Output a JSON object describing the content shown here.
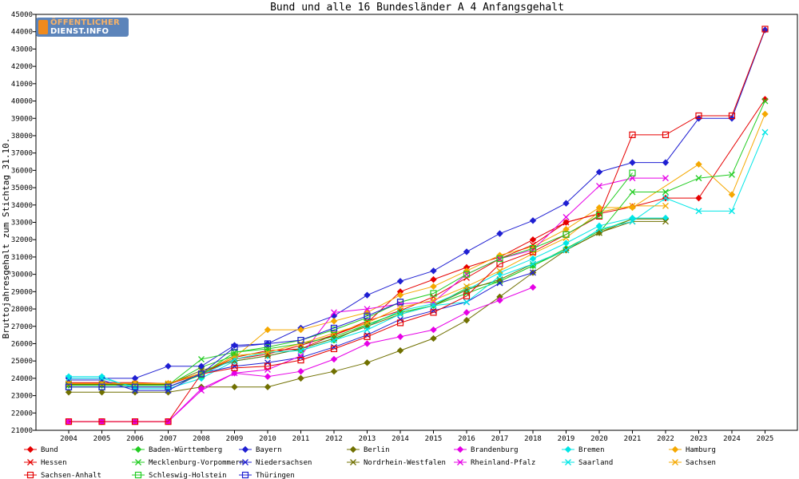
{
  "chart_data": {
    "type": "line",
    "title": "Bund und alle 16 Bundesländer A 4 Anfangsgehalt",
    "ylabel": "Bruttojahresgehalt zum Stichtag 31.10.",
    "xlabel": "",
    "ylim": [
      21000,
      45000
    ],
    "y_ticks": [
      21000,
      22000,
      23000,
      24000,
      25000,
      26000,
      27000,
      28000,
      29000,
      30000,
      31000,
      32000,
      33000,
      34000,
      35000,
      36000,
      37000,
      38000,
      39000,
      40000,
      41000,
      42000,
      43000,
      44000,
      45000
    ],
    "x": [
      2004,
      2005,
      2006,
      2007,
      2008,
      2009,
      2010,
      2011,
      2012,
      2013,
      2014,
      2015,
      2016,
      2017,
      2018,
      2019,
      2020,
      2021,
      2022,
      2023,
      2024,
      2025
    ],
    "grid": false,
    "legend_position": "bottom",
    "series": [
      {
        "name": "Bund",
        "color": "#e60000",
        "marker": "diamond",
        "values": [
          23750,
          23750,
          23750,
          23700,
          24300,
          25200,
          25600,
          25700,
          26500,
          27200,
          29000,
          29700,
          30400,
          31000,
          32000,
          33000,
          33500,
          33900,
          34400,
          34400,
          null,
          40100
        ]
      },
      {
        "name": "Baden-Württemberg",
        "color": "#22cc22",
        "marker": "diamond",
        "values": [
          23600,
          23600,
          23600,
          23600,
          24650,
          25300,
          25500,
          25600,
          26200,
          27100,
          27800,
          28200,
          29200,
          29600,
          30500,
          31500,
          32500,
          33200,
          33200,
          null,
          null,
          null
        ]
      },
      {
        "name": "Bayern",
        "color": "#1f1fd2",
        "marker": "diamond",
        "values": [
          24000,
          24000,
          24000,
          24700,
          24700,
          25900,
          26000,
          26900,
          27600,
          28800,
          29600,
          30200,
          31300,
          32350,
          33100,
          34100,
          35900,
          36450,
          36450,
          39000,
          39000,
          44100
        ]
      },
      {
        "name": "Berlin",
        "color": "#707000",
        "marker": "diamond",
        "values": [
          23200,
          23200,
          23200,
          23200,
          23500,
          23500,
          23500,
          24000,
          24400,
          24900,
          25600,
          26300,
          27350,
          28700,
          30100,
          31400,
          32400,
          33200,
          33200,
          null,
          null,
          null
        ]
      },
      {
        "name": "Brandenburg",
        "color": "#e600e6",
        "marker": "diamond",
        "values": [
          21500,
          21500,
          21500,
          21500,
          23400,
          24300,
          24100,
          24400,
          25100,
          26000,
          26400,
          26800,
          27800,
          28500,
          29250,
          null,
          null,
          null,
          null,
          null,
          null,
          null
        ]
      },
      {
        "name": "Bremen",
        "color": "#00e6e6",
        "marker": "diamond",
        "values": [
          24100,
          24100,
          23400,
          23400,
          24000,
          25000,
          25300,
          25700,
          26300,
          27000,
          27900,
          28300,
          29100,
          30100,
          30900,
          31800,
          32800,
          33250,
          33250,
          null,
          null,
          null
        ]
      },
      {
        "name": "Hamburg",
        "color": "#f5a800",
        "marker": "diamond",
        "values": [
          23700,
          23700,
          23700,
          23700,
          24200,
          25200,
          26800,
          26800,
          27300,
          27800,
          28800,
          29300,
          30200,
          31100,
          31600,
          32600,
          33850,
          33850,
          null,
          36350,
          34600,
          39250
        ]
      },
      {
        "name": "Hessen",
        "color": "#e60000",
        "marker": "cross",
        "values": [
          23700,
          23700,
          23650,
          23650,
          24300,
          25100,
          25400,
          25900,
          26500,
          27300,
          27900,
          28700,
          29800,
          30900,
          31700,
          33000,
          33500,
          null,
          null,
          null,
          null,
          null
        ]
      },
      {
        "name": "Mecklenburg-Vorpommern",
        "color": "#22cc22",
        "marker": "cross",
        "values": [
          23600,
          23600,
          23600,
          23600,
          25100,
          25500,
          25700,
          26000,
          26400,
          27100,
          27800,
          28200,
          28900,
          29600,
          30500,
          31400,
          32400,
          34750,
          34750,
          35550,
          35750,
          40000
        ]
      },
      {
        "name": "Niedersachsen",
        "color": "#1f1fd2",
        "marker": "cross",
        "values": [
          23900,
          23900,
          23300,
          23300,
          24300,
          24700,
          24900,
          25200,
          25800,
          26500,
          27400,
          27900,
          28400,
          29500,
          30100,
          null,
          null,
          null,
          null,
          null,
          null,
          null
        ]
      },
      {
        "name": "Nordrhein-Westfalen",
        "color": "#707000",
        "marker": "cross",
        "values": [
          23650,
          23650,
          23650,
          23650,
          24450,
          25000,
          25300,
          25700,
          26300,
          27000,
          27700,
          28200,
          29100,
          29700,
          30600,
          31400,
          32400,
          33050,
          33050,
          null,
          null,
          null
        ]
      },
      {
        "name": "Rheinland-Pfalz",
        "color": "#e600e6",
        "marker": "cross",
        "values": [
          21500,
          21500,
          21500,
          21500,
          23300,
          24300,
          24500,
          25300,
          27800,
          28000,
          28300,
          28400,
          30000,
          30900,
          31400,
          33300,
          35100,
          35550,
          35550,
          null,
          null,
          null
        ]
      },
      {
        "name": "Saarland",
        "color": "#00e6e6",
        "marker": "cross",
        "values": [
          24000,
          24000,
          23500,
          23500,
          24200,
          25100,
          25500,
          25600,
          26200,
          26800,
          27700,
          28200,
          28400,
          29900,
          30600,
          31400,
          32600,
          33050,
          34400,
          33650,
          33650,
          38200
        ]
      },
      {
        "name": "Sachsen",
        "color": "#f5a800",
        "marker": "cross",
        "values": [
          23700,
          23700,
          23700,
          23700,
          24300,
          25300,
          25500,
          26000,
          26600,
          27200,
          28100,
          28500,
          29300,
          30200,
          31200,
          32100,
          33600,
          33950,
          33950,
          null,
          null,
          null
        ]
      },
      {
        "name": "Sachsen-Anhalt",
        "color": "#e60000",
        "marker": "square",
        "values": [
          21500,
          21500,
          21500,
          21500,
          24250,
          24600,
          24700,
          25050,
          25700,
          26400,
          27200,
          27800,
          28750,
          30600,
          31300,
          32300,
          33350,
          38050,
          38050,
          39150,
          39150,
          44150
        ]
      },
      {
        "name": "Schleswig-Holstein",
        "color": "#22cc22",
        "marker": "square",
        "values": [
          23500,
          23500,
          23500,
          23500,
          24200,
          25500,
          25800,
          26200,
          26800,
          27500,
          28400,
          28900,
          30000,
          30900,
          31500,
          32300,
          33400,
          35850,
          null,
          null,
          null,
          null
        ]
      },
      {
        "name": "Thüringen",
        "color": "#1f1fd2",
        "marker": "square",
        "values": [
          23500,
          23500,
          23500,
          23500,
          24250,
          25800,
          26000,
          26200,
          26900,
          27600,
          28400,
          null,
          null,
          null,
          null,
          null,
          null,
          null,
          null,
          null,
          null,
          null
        ]
      }
    ]
  },
  "logo": {
    "line1": "ÖFFENTLICHER",
    "line2": "DIENST.INFO"
  }
}
